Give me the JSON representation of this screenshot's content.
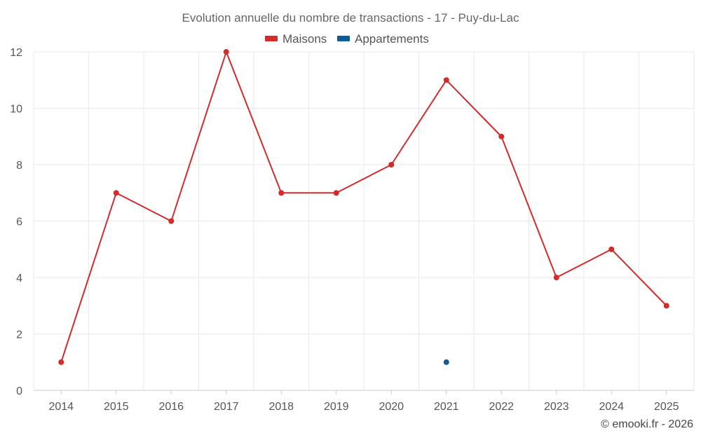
{
  "chart_data": {
    "type": "line",
    "title": "Evolution annuelle du nombre de transactions - 17 - Puy-du-Lac",
    "categories": [
      "2014",
      "2015",
      "2016",
      "2017",
      "2018",
      "2019",
      "2020",
      "2021",
      "2022",
      "2023",
      "2024",
      "2025"
    ],
    "series": [
      {
        "name": "Maisons",
        "color": "#d32a2a",
        "values": [
          1,
          7,
          6,
          12,
          7,
          7,
          8,
          11,
          9,
          4,
          5,
          3
        ]
      },
      {
        "name": "Appartements",
        "color": "#0c5d96",
        "values": [
          null,
          null,
          null,
          null,
          null,
          null,
          null,
          1,
          null,
          null,
          null,
          null
        ]
      }
    ],
    "ylim": [
      0,
      12
    ],
    "yticks": [
      0,
      2,
      4,
      6,
      8,
      10,
      12
    ],
    "grid": true,
    "legend_position": "top-center",
    "xlabel": "",
    "ylabel": ""
  },
  "credit": "© emooki.fr - 2026"
}
